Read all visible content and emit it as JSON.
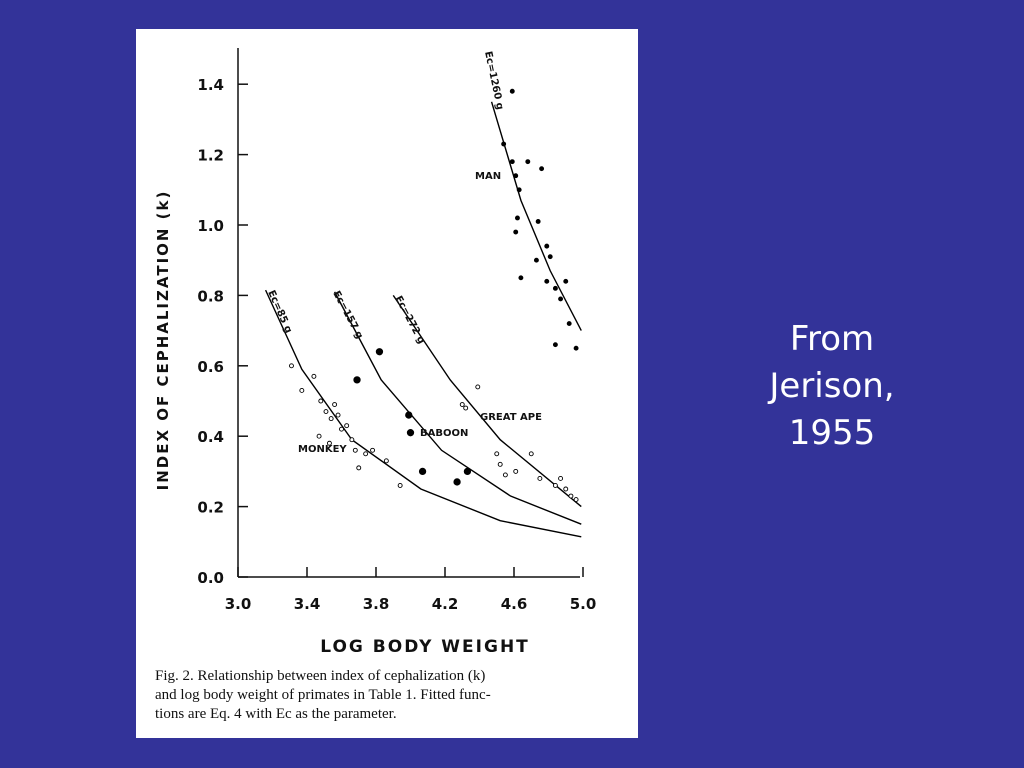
{
  "slide": {
    "note_lines": [
      "From",
      "Jerison,",
      "1955"
    ]
  },
  "chart_data": {
    "type": "scatter",
    "xlabel": "LOG BODY WEIGHT",
    "ylabel": "INDEX OF CEPHALIZATION (k)",
    "caption_lines": [
      "Fig. 2. Relationship between index of cephalization (k)",
      "and log body weight of primates in Table 1. Fitted func-",
      "tions are Eq. 4 with Ec as the parameter."
    ],
    "xlim": [
      3.0,
      5.0
    ],
    "ylim": [
      0,
      1.5
    ],
    "xticks": [
      {
        "value": 3.0,
        "label": "3.0"
      },
      3.4,
      3.8,
      4.2,
      4.6,
      {
        "value": 5.0,
        "label": "5.0"
      }
    ],
    "yticks": [
      {
        "value": 0,
        "label": "0.0"
      },
      0.2,
      0.4,
      0.6,
      0.8,
      {
        "value": 1.0,
        "label": "1.0"
      },
      1.2,
      1.4
    ],
    "series": [
      {
        "name": "Ec=85 g",
        "type": "line",
        "color": "#000000",
        "x": [
          3.16,
          3.37,
          3.66,
          4.06,
          4.52,
          4.99
        ],
        "values": [
          0.815,
          0.59,
          0.39,
          0.25,
          0.16,
          0.114
        ]
      },
      {
        "name": "Ec=157 g",
        "type": "line",
        "color": "#000000",
        "x": [
          3.56,
          3.83,
          4.18,
          4.58,
          4.99
        ],
        "values": [
          0.81,
          0.56,
          0.36,
          0.23,
          0.15
        ]
      },
      {
        "name": "Ec=272 g",
        "type": "line",
        "color": "#000000",
        "x": [
          3.9,
          4.23,
          4.52,
          4.99
        ],
        "values": [
          0.8,
          0.56,
          0.39,
          0.2
        ]
      },
      {
        "name": "Ec=1260 g",
        "type": "line",
        "color": "#000000",
        "x": [
          4.47,
          4.64,
          4.81,
          4.99
        ],
        "values": [
          1.35,
          1.07,
          0.87,
          0.7
        ]
      },
      {
        "name": "MONKEY",
        "type": "scatter",
        "color": "#000000",
        "x": [
          3.31,
          3.37,
          3.44,
          3.48,
          3.51,
          3.54,
          3.56,
          3.58,
          3.6,
          3.63,
          3.66,
          3.68,
          3.47,
          3.53,
          3.74,
          3.78,
          3.7,
          3.86,
          3.94
        ],
        "values": [
          0.6,
          0.53,
          0.57,
          0.5,
          0.47,
          0.45,
          0.49,
          0.46,
          0.42,
          0.43,
          0.39,
          0.36,
          0.4,
          0.38,
          0.35,
          0.36,
          0.31,
          0.33,
          0.26
        ]
      },
      {
        "name": "BABOON",
        "type": "scatter",
        "color": "#000000",
        "x": [
          3.69,
          3.82,
          3.99,
          4.0,
          4.07,
          4.27,
          4.33
        ],
        "values": [
          0.56,
          0.64,
          0.46,
          0.41,
          0.3,
          0.27,
          0.3
        ]
      },
      {
        "name": "GREAT APE",
        "type": "scatter",
        "color": "#000000",
        "x": [
          4.3,
          4.32,
          4.39,
          4.5,
          4.52,
          4.55,
          4.61,
          4.7,
          4.75,
          4.84,
          4.87,
          4.9,
          4.93,
          4.96
        ],
        "values": [
          0.49,
          0.48,
          0.54,
          0.35,
          0.32,
          0.29,
          0.3,
          0.35,
          0.28,
          0.26,
          0.28,
          0.25,
          0.23,
          0.22
        ]
      },
      {
        "name": "MAN",
        "type": "scatter",
        "color": "#000000",
        "x": [
          4.59,
          4.54,
          4.59,
          4.61,
          4.63,
          4.62,
          4.61,
          4.64,
          4.68,
          4.76,
          4.74,
          4.79,
          4.81,
          4.73,
          4.79,
          4.84,
          4.87,
          4.9,
          4.84,
          4.96,
          4.92
        ],
        "values": [
          1.38,
          1.23,
          1.18,
          1.14,
          1.1,
          1.02,
          0.98,
          0.85,
          1.18,
          1.16,
          1.01,
          0.94,
          0.91,
          0.9,
          0.84,
          0.82,
          0.79,
          0.84,
          0.66,
          0.65,
          0.72
        ]
      }
    ]
  }
}
